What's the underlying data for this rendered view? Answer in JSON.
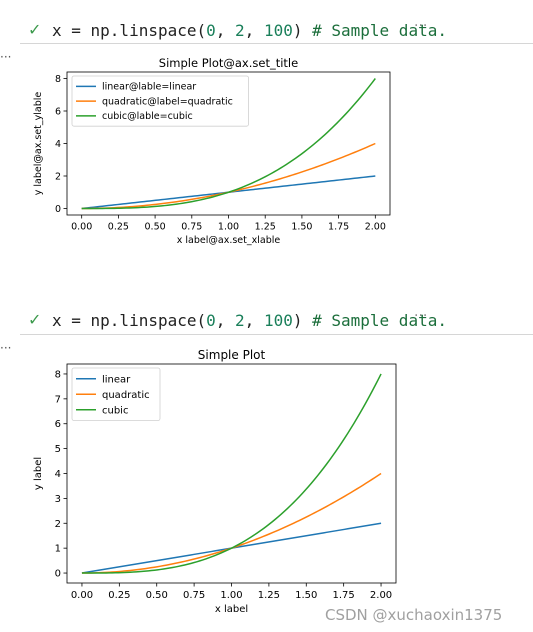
{
  "cells": [
    {
      "check": "✓",
      "code_tokens": [
        {
          "t": "x = np.linspace(",
          "c": "plain"
        },
        {
          "t": "0",
          "c": "num"
        },
        {
          "t": ", ",
          "c": "plain"
        },
        {
          "t": "2",
          "c": "num"
        },
        {
          "t": ", ",
          "c": "plain"
        },
        {
          "t": "100",
          "c": "num"
        },
        {
          "t": ") ",
          "c": "plain"
        },
        {
          "t": "# Sample data.",
          "c": "com"
        }
      ],
      "more": "···",
      "output_ellipsis": "···"
    },
    {
      "check": "✓",
      "code_tokens": [
        {
          "t": "x = np.linspace(",
          "c": "plain"
        },
        {
          "t": "0",
          "c": "num"
        },
        {
          "t": ", ",
          "c": "plain"
        },
        {
          "t": "2",
          "c": "num"
        },
        {
          "t": ", ",
          "c": "plain"
        },
        {
          "t": "100",
          "c": "num"
        },
        {
          "t": ") ",
          "c": "plain"
        },
        {
          "t": "# Sample data.",
          "c": "com"
        }
      ],
      "more": "···",
      "output_ellipsis": "···"
    }
  ],
  "chart_data": [
    {
      "type": "line",
      "title": "Simple Plot@ax.set_title",
      "xlabel": "x label@ax.set_xlable",
      "ylabel": "y label@ax.set_ylable",
      "xlim": [
        -0.1,
        2.1
      ],
      "ylim": [
        -0.4,
        8.4
      ],
      "x_ticks": [
        "0.00",
        "0.25",
        "0.50",
        "0.75",
        "1.00",
        "1.25",
        "1.50",
        "1.75",
        "2.00"
      ],
      "y_ticks": [
        "0",
        "2",
        "4",
        "6",
        "8"
      ],
      "legend_position": "upper-left",
      "x_domain": [
        0,
        2
      ],
      "n_points": 100,
      "series": [
        {
          "name": "linear@lable=linear",
          "function": "x",
          "color": "#1f77b4"
        },
        {
          "name": "quadratic@label=quadratic",
          "function": "x^2",
          "color": "#ff7f0e"
        },
        {
          "name": "cubic@lable=cubic",
          "function": "x^3",
          "color": "#2ca02c"
        }
      ]
    },
    {
      "type": "line",
      "title": "Simple Plot",
      "xlabel": "x label",
      "ylabel": "y label",
      "xlim": [
        -0.1,
        2.1
      ],
      "ylim": [
        -0.4,
        8.4
      ],
      "x_ticks": [
        "0.00",
        "0.25",
        "0.50",
        "0.75",
        "1.00",
        "1.25",
        "1.50",
        "1.75",
        "2.00"
      ],
      "y_ticks": [
        "0",
        "1",
        "2",
        "3",
        "4",
        "5",
        "6",
        "7",
        "8"
      ],
      "legend_position": "upper-left",
      "x_domain": [
        0,
        2
      ],
      "n_points": 100,
      "series": [
        {
          "name": "linear",
          "function": "x",
          "color": "#1f77b4"
        },
        {
          "name": "quadratic",
          "function": "x^2",
          "color": "#ff7f0e"
        },
        {
          "name": "cubic",
          "function": "x^3",
          "color": "#2ca02c"
        }
      ]
    }
  ],
  "watermark": "CSDN @xuchaoxin1375"
}
